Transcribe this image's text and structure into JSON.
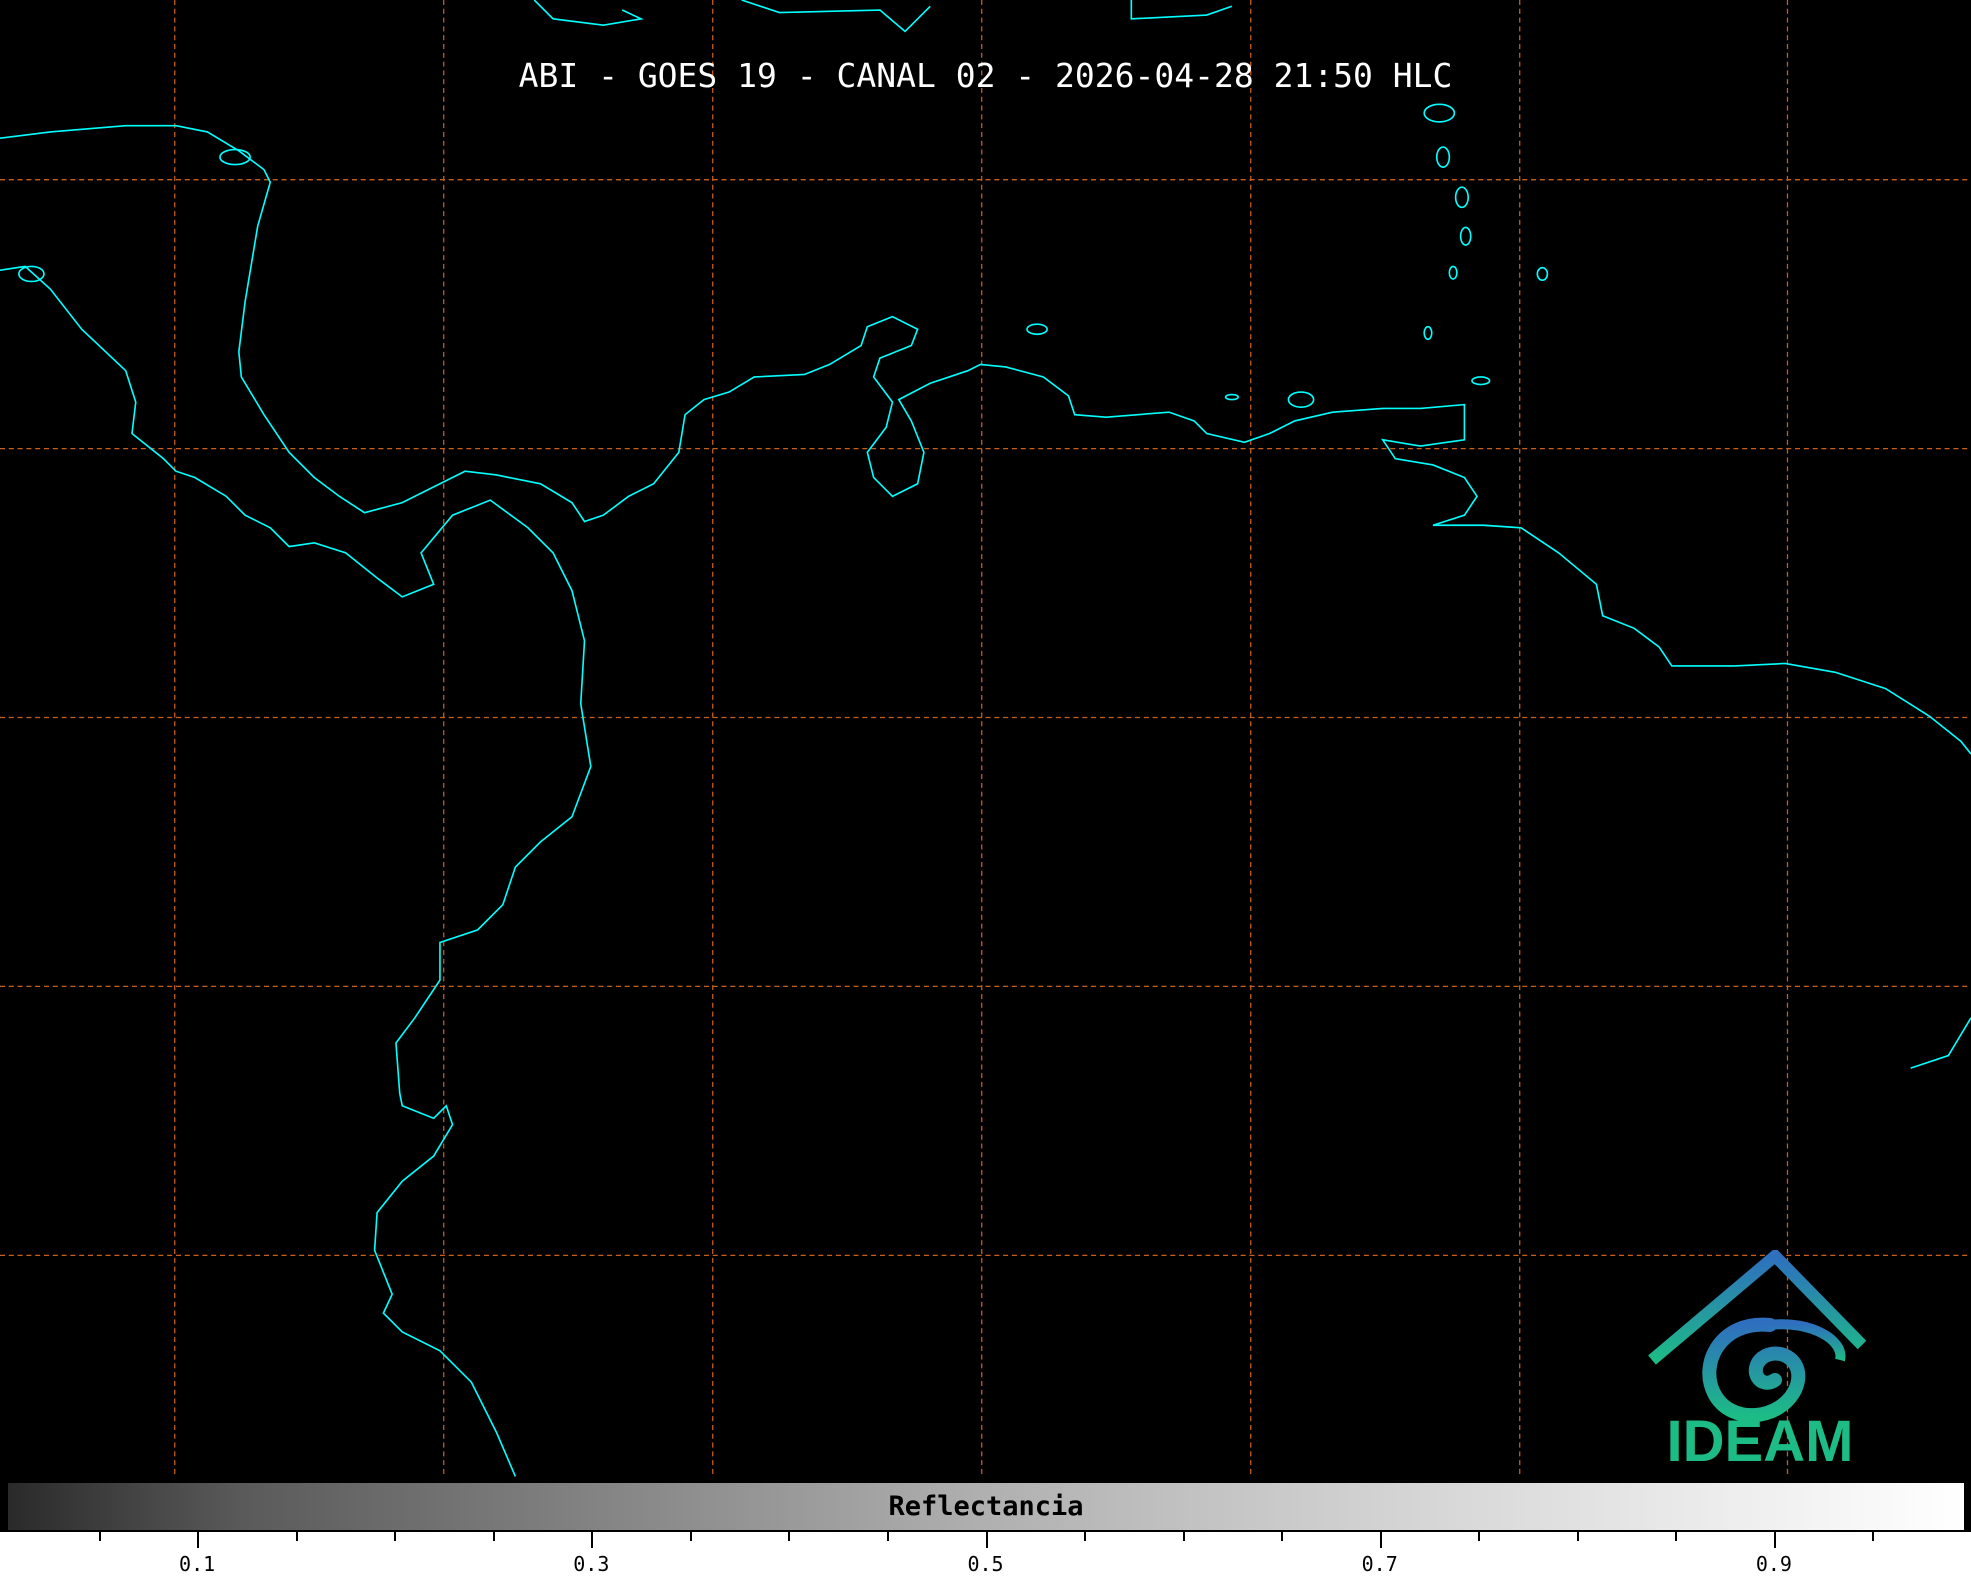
{
  "title": "ABI - GOES 19 - CANAL 02 - 2026-04-28 21:50 HLC",
  "colorbar": {
    "label": "Reflectancia",
    "range": [
      0,
      1
    ],
    "colormap": "grayscale",
    "major_ticks": [
      {
        "value": 0.1,
        "label": "0.1"
      },
      {
        "value": 0.3,
        "label": "0.3"
      },
      {
        "value": 0.5,
        "label": "0.5"
      },
      {
        "value": 0.7,
        "label": "0.7"
      },
      {
        "value": 0.9,
        "label": "0.9"
      }
    ],
    "minor_tick_step": 0.05
  },
  "logo": {
    "text": "IDEAM"
  },
  "colors": {
    "coastline": "#00ffff",
    "gridline": "#e07020",
    "background": "#000000",
    "logo_top": "#2f6fbf",
    "logo_bottom": "#1dbb86"
  }
}
